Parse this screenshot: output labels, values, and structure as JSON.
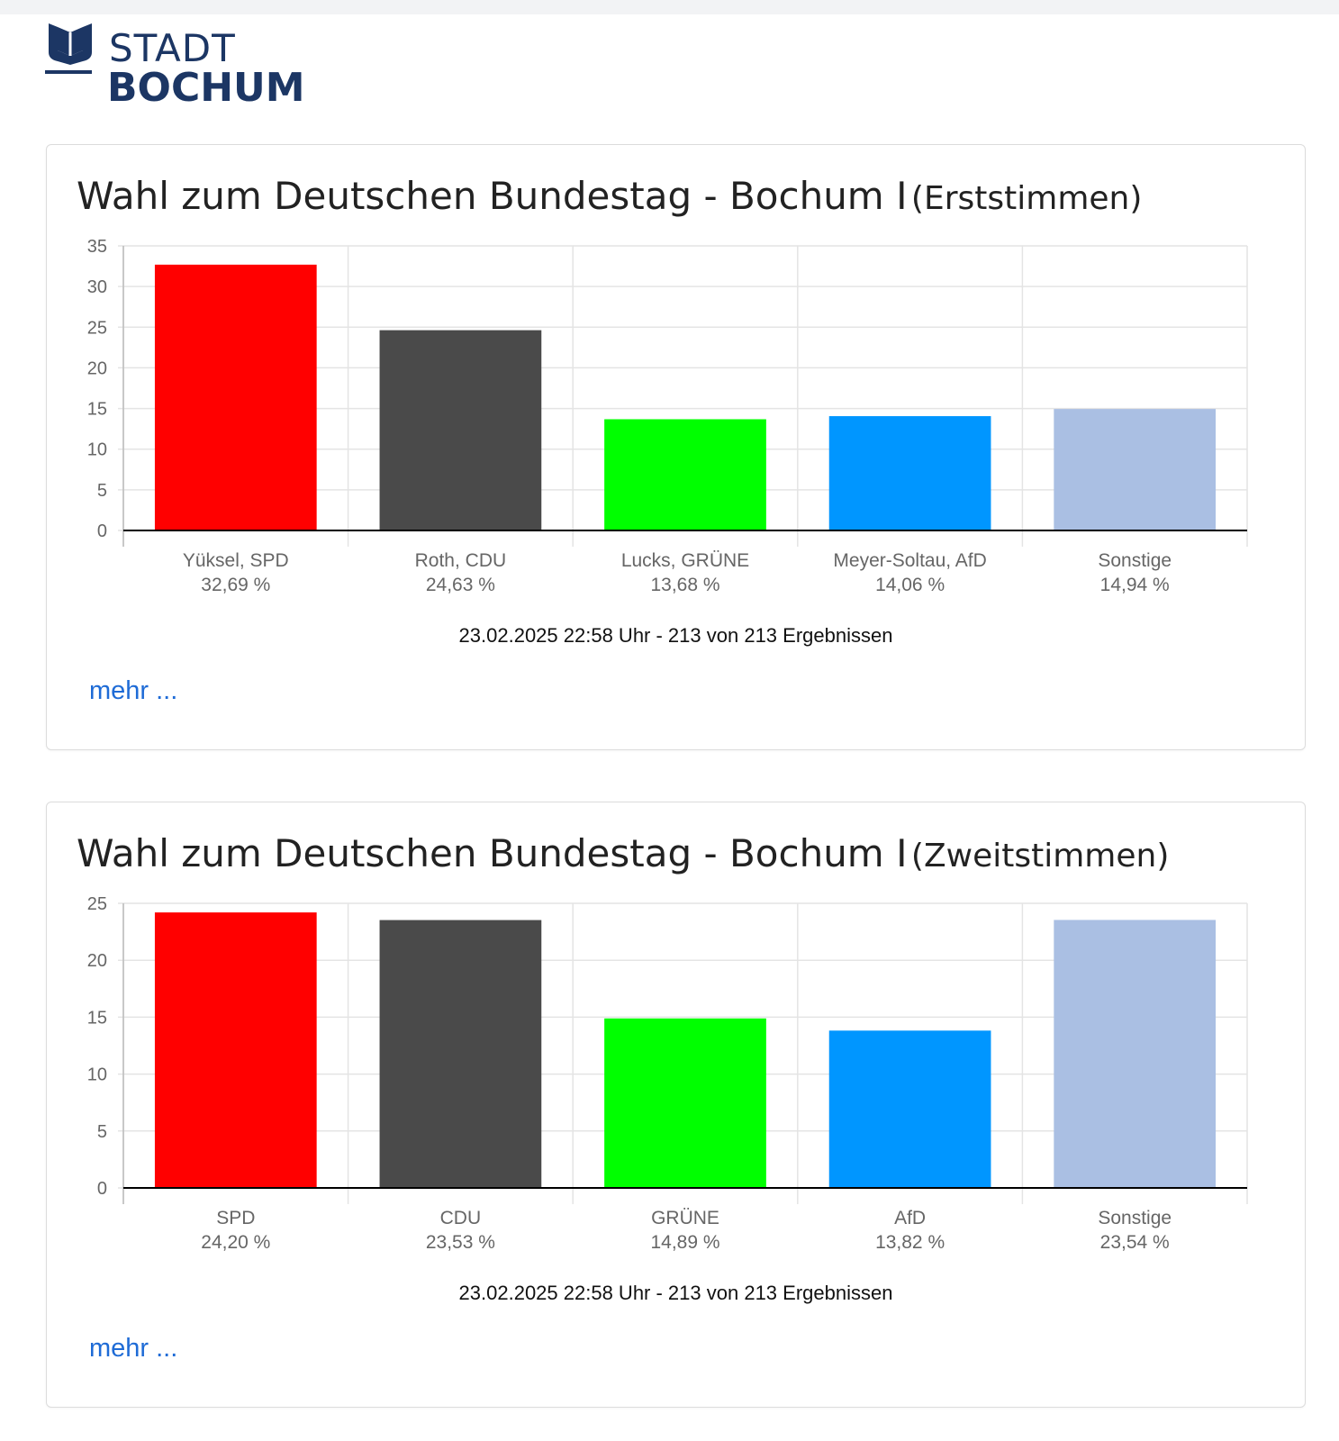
{
  "logo": {
    "line1": "STADT",
    "line2": "BOCHUM",
    "color": "#1c3664"
  },
  "cards": [
    {
      "title": "Wahl zum Deutschen Bundestag - Bochum I",
      "subtitle": "(Erststimmen)",
      "footer": "23.02.2025 22:58 Uhr - 213 von 213 Ergebnissen",
      "more_label": "mehr ..."
    },
    {
      "title": "Wahl zum Deutschen Bundestag - Bochum I",
      "subtitle": "(Zweitstimmen)",
      "footer": "23.02.2025 22:58 Uhr - 213 von 213 Ergebnissen",
      "more_label": "mehr ..."
    }
  ],
  "chart_data": [
    {
      "type": "bar",
      "title": "",
      "xlabel": "",
      "ylabel": "",
      "categories": [
        "Yüksel, SPD",
        "Roth, CDU",
        "Lucks, GRÜNE",
        "Meyer-Soltau, AfD",
        "Sonstige"
      ],
      "value_labels": [
        "32,69 %",
        "24,63 %",
        "13,68 %",
        "14,06 %",
        "14,94 %"
      ],
      "values": [
        32.69,
        24.63,
        13.68,
        14.06,
        14.94
      ],
      "colors": [
        "#ff0000",
        "#4a4a4a",
        "#00ff00",
        "#0096ff",
        "#aabfe3"
      ],
      "ylim": [
        0,
        35
      ],
      "yticks": [
        0,
        5,
        10,
        15,
        20,
        25,
        30,
        35
      ],
      "grid": true,
      "legend": "none"
    },
    {
      "type": "bar",
      "title": "",
      "xlabel": "",
      "ylabel": "",
      "categories": [
        "SPD",
        "CDU",
        "GRÜNE",
        "AfD",
        "Sonstige"
      ],
      "value_labels": [
        "24,20 %",
        "23,53 %",
        "14,89 %",
        "13,82 %",
        "23,54 %"
      ],
      "values": [
        24.2,
        23.53,
        14.89,
        13.82,
        23.54
      ],
      "colors": [
        "#ff0000",
        "#4a4a4a",
        "#00ff00",
        "#0096ff",
        "#aabfe3"
      ],
      "ylim": [
        0,
        25
      ],
      "yticks": [
        0,
        5,
        10,
        15,
        20,
        25
      ],
      "grid": true,
      "legend": "none"
    }
  ]
}
